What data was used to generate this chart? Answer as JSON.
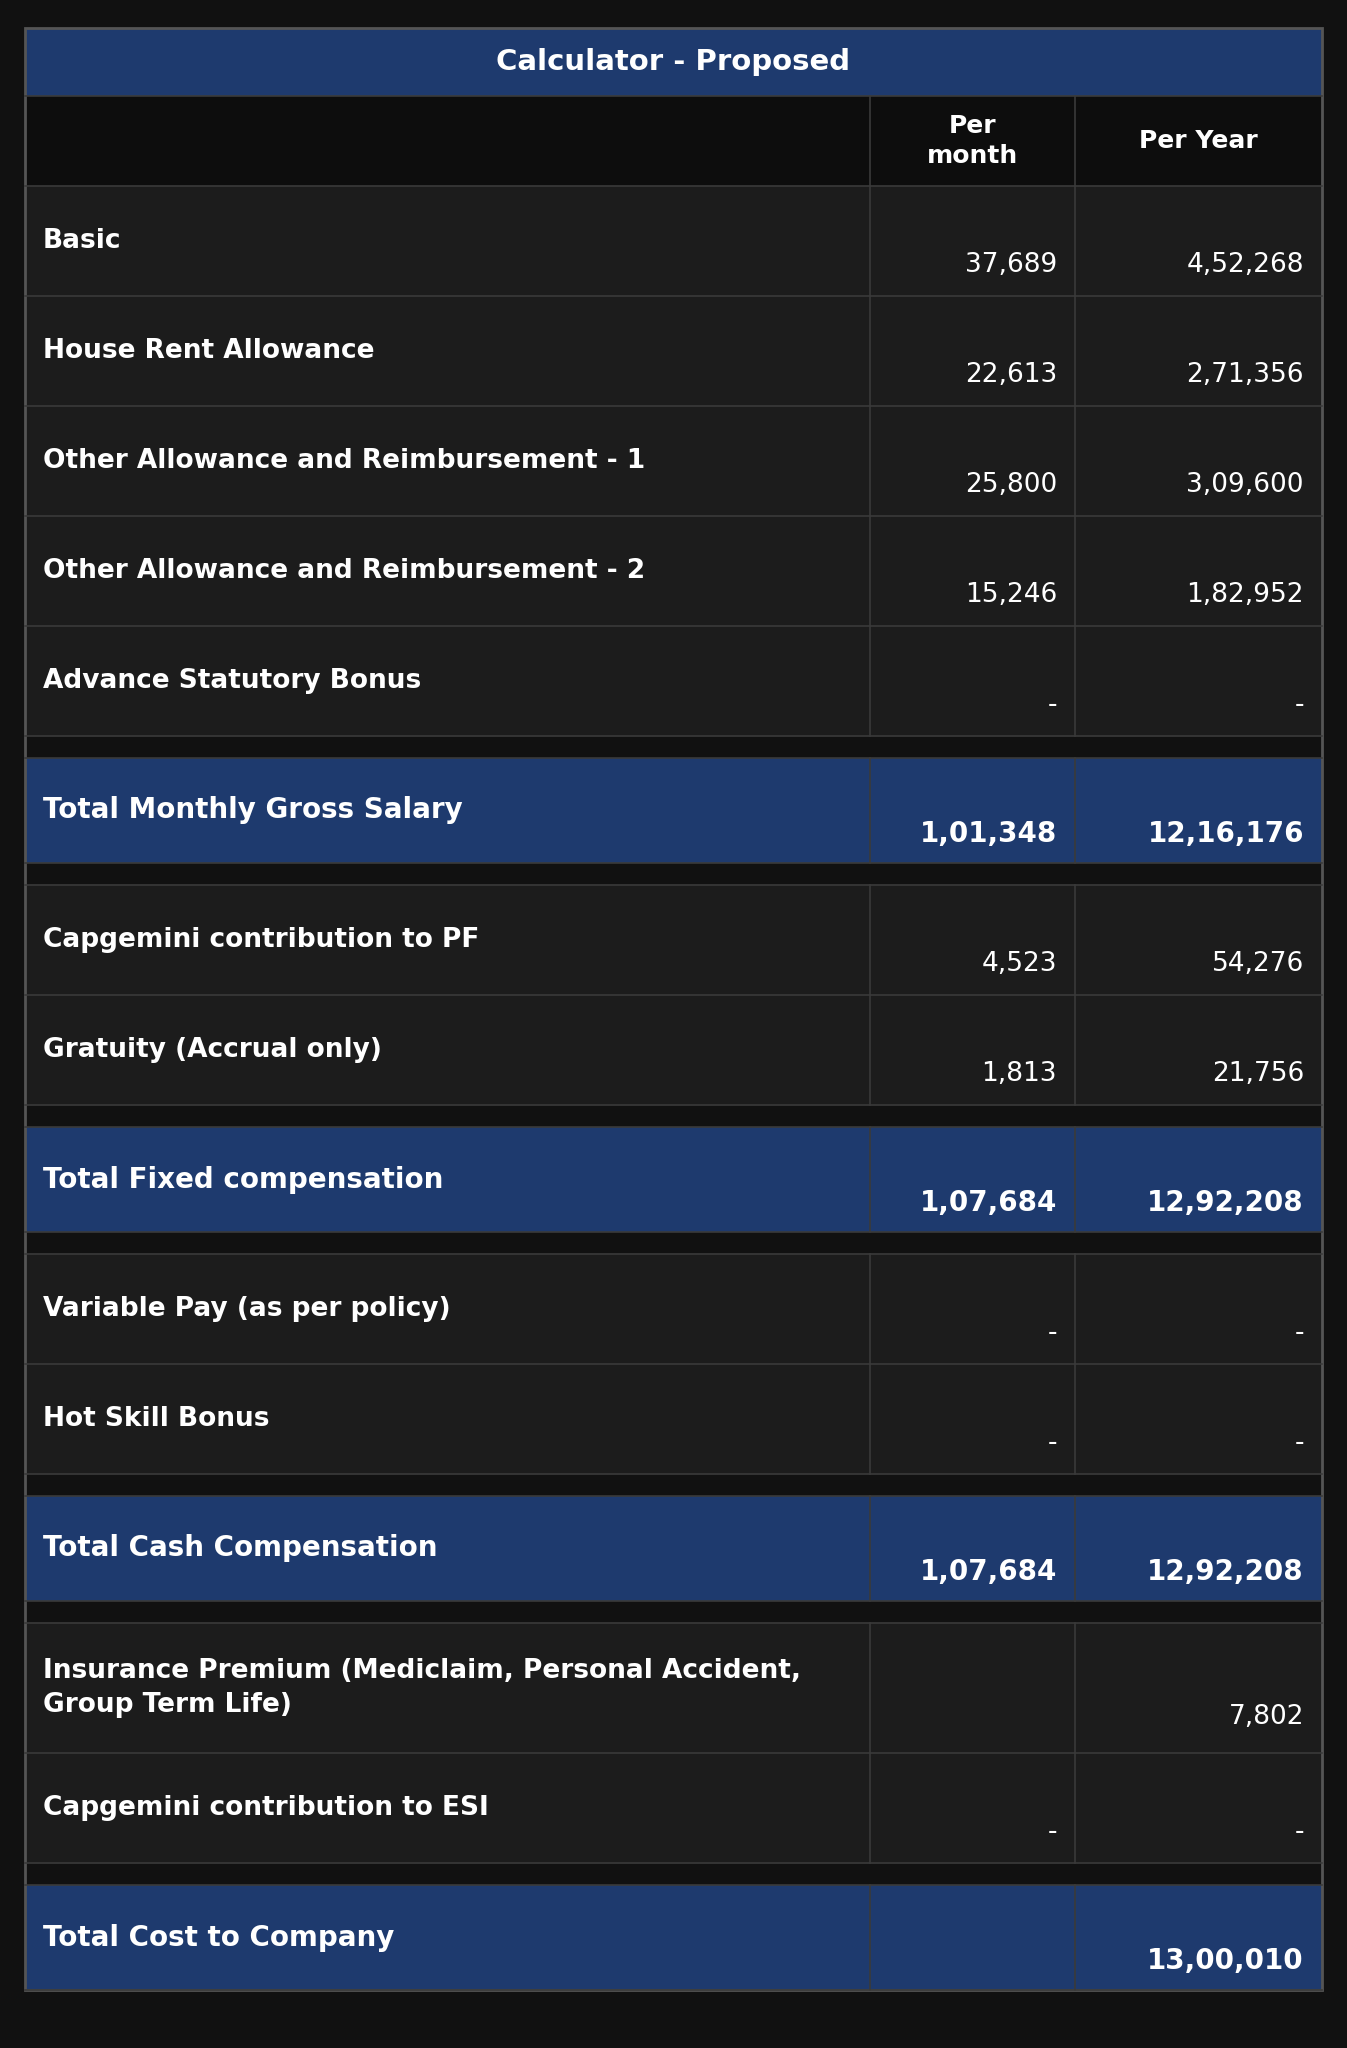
{
  "title": "Calculator - Proposed",
  "title_bg": "#1e3a6e",
  "title_text_color": "#ffffff",
  "header_bg": "#0d0d0d",
  "highlight_bg": "#1e3a6e",
  "highlight_text_color": "#ffffff",
  "normal_text_color": "#ffffff",
  "outer_bg": "#111111",
  "row_bg": "#1c1c1c",
  "spacer_bg": "#111111",
  "separator_color": "#3a3a3a",
  "rows": [
    {
      "label": "Basic",
      "month": "37,689",
      "year": "4,52,268",
      "type": "normal"
    },
    {
      "label": "House Rent Allowance",
      "month": "22,613",
      "year": "2,71,356",
      "type": "normal"
    },
    {
      "label": "Other Allowance and Reimbursement - 1",
      "month": "25,800",
      "year": "3,09,600",
      "type": "normal"
    },
    {
      "label": "Other Allowance and Reimbursement - 2",
      "month": "15,246",
      "year": "1,82,952",
      "type": "normal"
    },
    {
      "label": "Advance Statutory Bonus",
      "month": "-",
      "year": "-",
      "type": "normal"
    },
    {
      "label": "",
      "month": "",
      "year": "",
      "type": "spacer"
    },
    {
      "label": "Total Monthly Gross Salary",
      "month": "1,01,348",
      "year": "12,16,176",
      "type": "highlight"
    },
    {
      "label": "",
      "month": "",
      "year": "",
      "type": "spacer"
    },
    {
      "label": "Capgemini contribution to PF",
      "month": "4,523",
      "year": "54,276",
      "type": "normal"
    },
    {
      "label": "Gratuity (Accrual only)",
      "month": "1,813",
      "year": "21,756",
      "type": "normal"
    },
    {
      "label": "",
      "month": "",
      "year": "",
      "type": "spacer"
    },
    {
      "label": "Total Fixed compensation",
      "month": "1,07,684",
      "year": "12,92,208",
      "type": "highlight"
    },
    {
      "label": "",
      "month": "",
      "year": "",
      "type": "spacer"
    },
    {
      "label": "Variable Pay (as per policy)",
      "month": "-",
      "year": "-",
      "type": "normal"
    },
    {
      "label": "Hot Skill Bonus",
      "month": "-",
      "year": "-",
      "type": "normal"
    },
    {
      "label": "",
      "month": "",
      "year": "",
      "type": "spacer"
    },
    {
      "label": "Total Cash Compensation",
      "month": "1,07,684",
      "year": "12,92,208",
      "type": "highlight"
    },
    {
      "label": "",
      "month": "",
      "year": "",
      "type": "spacer"
    },
    {
      "label": "Insurance Premium (Mediclaim, Personal Accident,\nGroup Term Life)",
      "month": "",
      "year": "7,802",
      "type": "normal",
      "multiline": true
    },
    {
      "label": "Capgemini contribution to ESI",
      "month": "-",
      "year": "-",
      "type": "normal"
    },
    {
      "label": "",
      "month": "",
      "year": "",
      "type": "spacer"
    },
    {
      "label": "Total Cost to Company",
      "month": "",
      "year": "13,00,010",
      "type": "highlight"
    }
  ]
}
